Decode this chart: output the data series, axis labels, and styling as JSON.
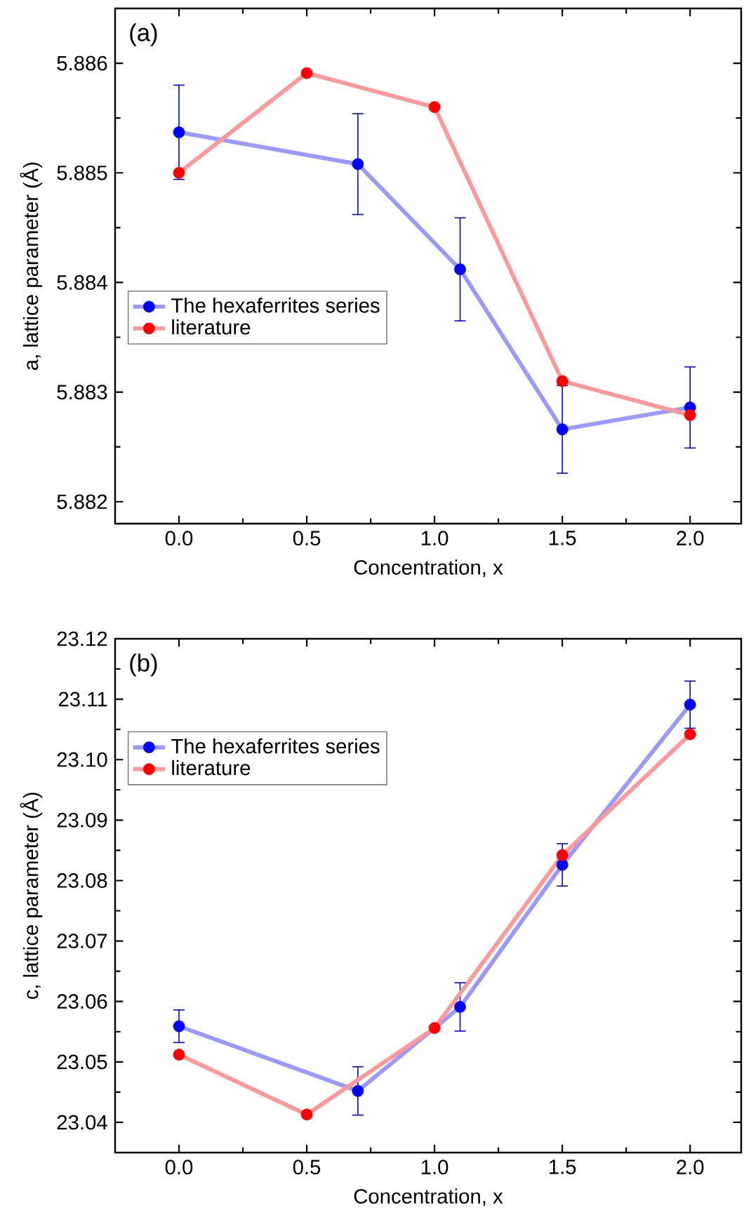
{
  "chart_data": [
    {
      "type": "line",
      "annotations": [
        "(a)"
      ],
      "xlabel": "Concentration, x",
      "ylabel": "a, lattice parameter (Å)",
      "xlim": [
        -0.25,
        2.2
      ],
      "ylim": [
        5.8818,
        5.8865
      ],
      "xticks": [
        {
          "value": 0,
          "label": "0.0"
        },
        {
          "value": 0.5,
          "label": "0.5"
        },
        {
          "value": 1,
          "label": "1.0"
        },
        {
          "value": 1.5,
          "label": "1.5"
        },
        {
          "value": 2,
          "label": "2.0"
        }
      ],
      "yticks": [
        5.882,
        5.883,
        5.884,
        5.885,
        5.886
      ],
      "legend": "left",
      "marker": "circle",
      "series": [
        {
          "name": "The hexaferrites series",
          "color": "#0000ff",
          "x": [
            0,
            0.7,
            1.1,
            1.5,
            2.0
          ],
          "values": [
            5.88537,
            5.88508,
            5.88412,
            5.88266,
            5.88286
          ],
          "errors": [
            0.00043,
            0.00046,
            0.00047,
            0.0004,
            0.00037
          ]
        },
        {
          "name": "literature",
          "color": "#ff0000",
          "x": [
            0,
            0.5,
            1.0,
            1.5,
            2.0
          ],
          "values": [
            5.885,
            5.88591,
            5.8856,
            5.8831,
            5.88279
          ]
        }
      ]
    },
    {
      "type": "line",
      "annotations": [
        "(b)"
      ],
      "xlabel": "Concentration, x",
      "ylabel": "c, lattice parameter (Å)",
      "xlim": [
        -0.25,
        2.2
      ],
      "ylim": [
        23.035,
        23.12
      ],
      "xticks": [
        {
          "value": 0,
          "label": "0.0"
        },
        {
          "value": 0.5,
          "label": "0.5"
        },
        {
          "value": 1,
          "label": "1.0"
        },
        {
          "value": 1.5,
          "label": "1.5"
        },
        {
          "value": 2,
          "label": "2.0"
        }
      ],
      "yticks": [
        {
          "value": 23.04,
          "label": "23.04"
        },
        {
          "value": 23.05,
          "label": "23.05"
        },
        {
          "value": 23.06,
          "label": "23.06"
        },
        {
          "value": 23.07,
          "label": "23.07"
        },
        {
          "value": 23.08,
          "label": "23.08"
        },
        {
          "value": 23.09,
          "label": "23.09"
        },
        {
          "value": 23.1,
          "label": "23.10"
        },
        {
          "value": 23.11,
          "label": "23.11"
        },
        {
          "value": 23.12,
          "label": "23.12"
        }
      ],
      "legend": "top left",
      "marker": "circle",
      "series": [
        {
          "name": "The hexaferrites series",
          "color": "#0000ff",
          "x": [
            0,
            0.7,
            1.1,
            1.5,
            2.0
          ],
          "values": [
            23.0559,
            23.0452,
            23.0591,
            23.0826,
            23.1091
          ],
          "errors": [
            0.0027,
            0.004,
            0.004,
            0.0035,
            0.0039
          ]
        },
        {
          "name": "literature",
          "color": "#ff0000",
          "x": [
            0,
            0.5,
            1.0,
            1.5,
            2.0
          ],
          "values": [
            23.0512,
            23.0413,
            23.0556,
            23.0842,
            23.1042
          ]
        }
      ]
    }
  ]
}
